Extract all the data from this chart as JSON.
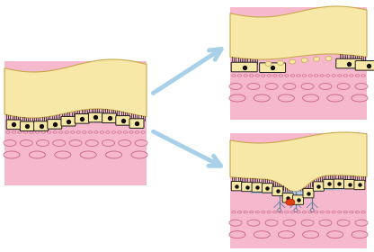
{
  "bg_color": "#ffffff",
  "yellow_color": "#f7e8a8",
  "yellow_outline": "#c8a84b",
  "pink_color": "#f5b8cc",
  "cell_fill": "#f7e8a8",
  "cell_outline": "#1a1a1a",
  "cell_dot": "#111111",
  "oval_outline": "#cc6688",
  "arrow_color": "#a8d0e8",
  "drusen_color": "#b8d8f0",
  "drusen_outline": "#8aaac8",
  "bleed_color": "#e04010",
  "vessel_color": "#6080a0",
  "tick_color": "#222222"
}
